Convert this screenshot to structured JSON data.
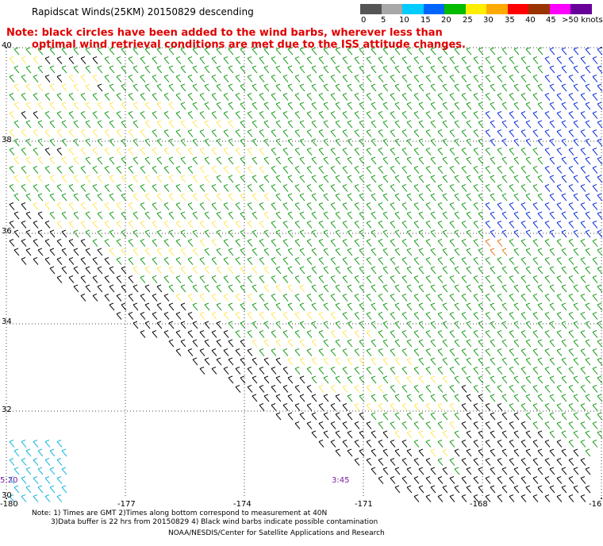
{
  "title": "Rapidscat Winds(25KM) 20150829 descending",
  "note": {
    "line1": "Note: black circles have been added to the wind barbs, wherever less than",
    "line2": "optimal wind retrieval conditions are met due to the ISS attitude changes."
  },
  "legend": {
    "units": ">50 knots",
    "labels": [
      "0",
      "5",
      "10",
      "15",
      "20",
      "25",
      "30",
      "35",
      "40",
      "45"
    ],
    "colors": [
      "#555555",
      "#a8a8a8",
      "#00ccff",
      "#0066ff",
      "#00bb00",
      "#ffee00",
      "#ffaa00",
      "#ff0000",
      "#993300",
      "#ff00ff",
      "#660099"
    ]
  },
  "map": {
    "lat_labels": [
      "40",
      "38",
      "36",
      "34",
      "32",
      "30"
    ],
    "lon_labels": [
      "-180",
      "-177",
      "-174",
      "-171",
      "-168",
      "-16"
    ],
    "times": [
      "5:20",
      "3:45"
    ],
    "colors": {
      "black": "#111111",
      "green": "#22a022",
      "yellow": "#ffe860",
      "blue": "#1133dd",
      "cyan": "#20b8e0",
      "orange": "#e08020"
    }
  },
  "footer": {
    "line1": "Note: 1) Times are GMT 2)Times along bottom correspond to measurement at 40N",
    "line2": "3)Data buffer is 22 hrs from 20150829 4) Black wind barbs indicate possible contamination",
    "line3": "NOAA/NESDIS/Center for Satellite Applications and Research"
  }
}
